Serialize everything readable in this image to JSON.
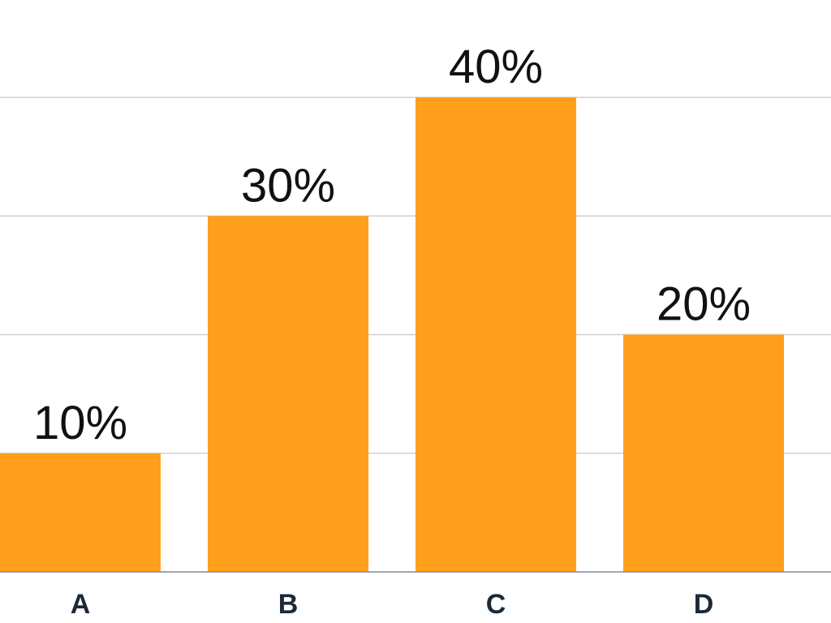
{
  "chart_data": {
    "type": "bar",
    "categories": [
      "A",
      "B",
      "C",
      "D"
    ],
    "values": [
      10,
      30,
      40,
      20
    ],
    "value_labels": [
      "10%",
      "30%",
      "40%",
      "20%"
    ],
    "title": "",
    "xlabel": "",
    "ylabel": "",
    "ylim": [
      0,
      40
    ],
    "y_gridlines": [
      10,
      20,
      30,
      40
    ],
    "grid": true,
    "legend": "none",
    "bar_color": "#FF9F1C"
  }
}
